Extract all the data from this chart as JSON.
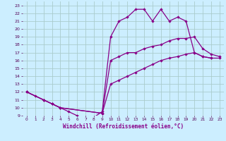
{
  "xlabel": "Windchill (Refroidissement éolien,°C)",
  "bg_color": "#cceeff",
  "grid_color": "#aacccc",
  "line_color": "#880088",
  "xlim": [
    -0.5,
    23.5
  ],
  "ylim": [
    9,
    23.5
  ],
  "xticks": [
    0,
    1,
    2,
    3,
    4,
    5,
    6,
    7,
    8,
    9,
    10,
    11,
    12,
    13,
    14,
    15,
    16,
    17,
    18,
    19,
    20,
    21,
    22,
    23
  ],
  "yticks": [
    9,
    10,
    11,
    12,
    13,
    14,
    15,
    16,
    17,
    18,
    19,
    20,
    21,
    22,
    23
  ],
  "line1_x": [
    0,
    1,
    2,
    3,
    4,
    5,
    6,
    7,
    8,
    9,
    10,
    11,
    12,
    13,
    14,
    15,
    16,
    17,
    18,
    19,
    20,
    21,
    22,
    23
  ],
  "line1_y": [
    12,
    11.5,
    11,
    10.5,
    10,
    9.5,
    9,
    8.8,
    8.8,
    9.5,
    19,
    21,
    21.5,
    22.5,
    22.5,
    21,
    22.5,
    21,
    21.5,
    21,
    17,
    16.5,
    16.3,
    null
  ],
  "line2_x": [
    0,
    2,
    3,
    4,
    9,
    10,
    11,
    12,
    13,
    14,
    15,
    16,
    17,
    18,
    19,
    20,
    21,
    22,
    23
  ],
  "line2_y": [
    12,
    11,
    10.5,
    10,
    9.3,
    16,
    16.5,
    17,
    17,
    17.5,
    17.8,
    18,
    18.5,
    18.8,
    18.8,
    19,
    17.5,
    16.8,
    16.5
  ],
  "line3_x": [
    0,
    2,
    3,
    4,
    9,
    10,
    11,
    12,
    13,
    14,
    15,
    16,
    17,
    18,
    19,
    20,
    21,
    22,
    23
  ],
  "line3_y": [
    12,
    11,
    10.5,
    10,
    9.3,
    13,
    13.5,
    14,
    14.5,
    15,
    15.5,
    16,
    16.3,
    16.5,
    16.8,
    17,
    16.5,
    16.3,
    16.3
  ]
}
